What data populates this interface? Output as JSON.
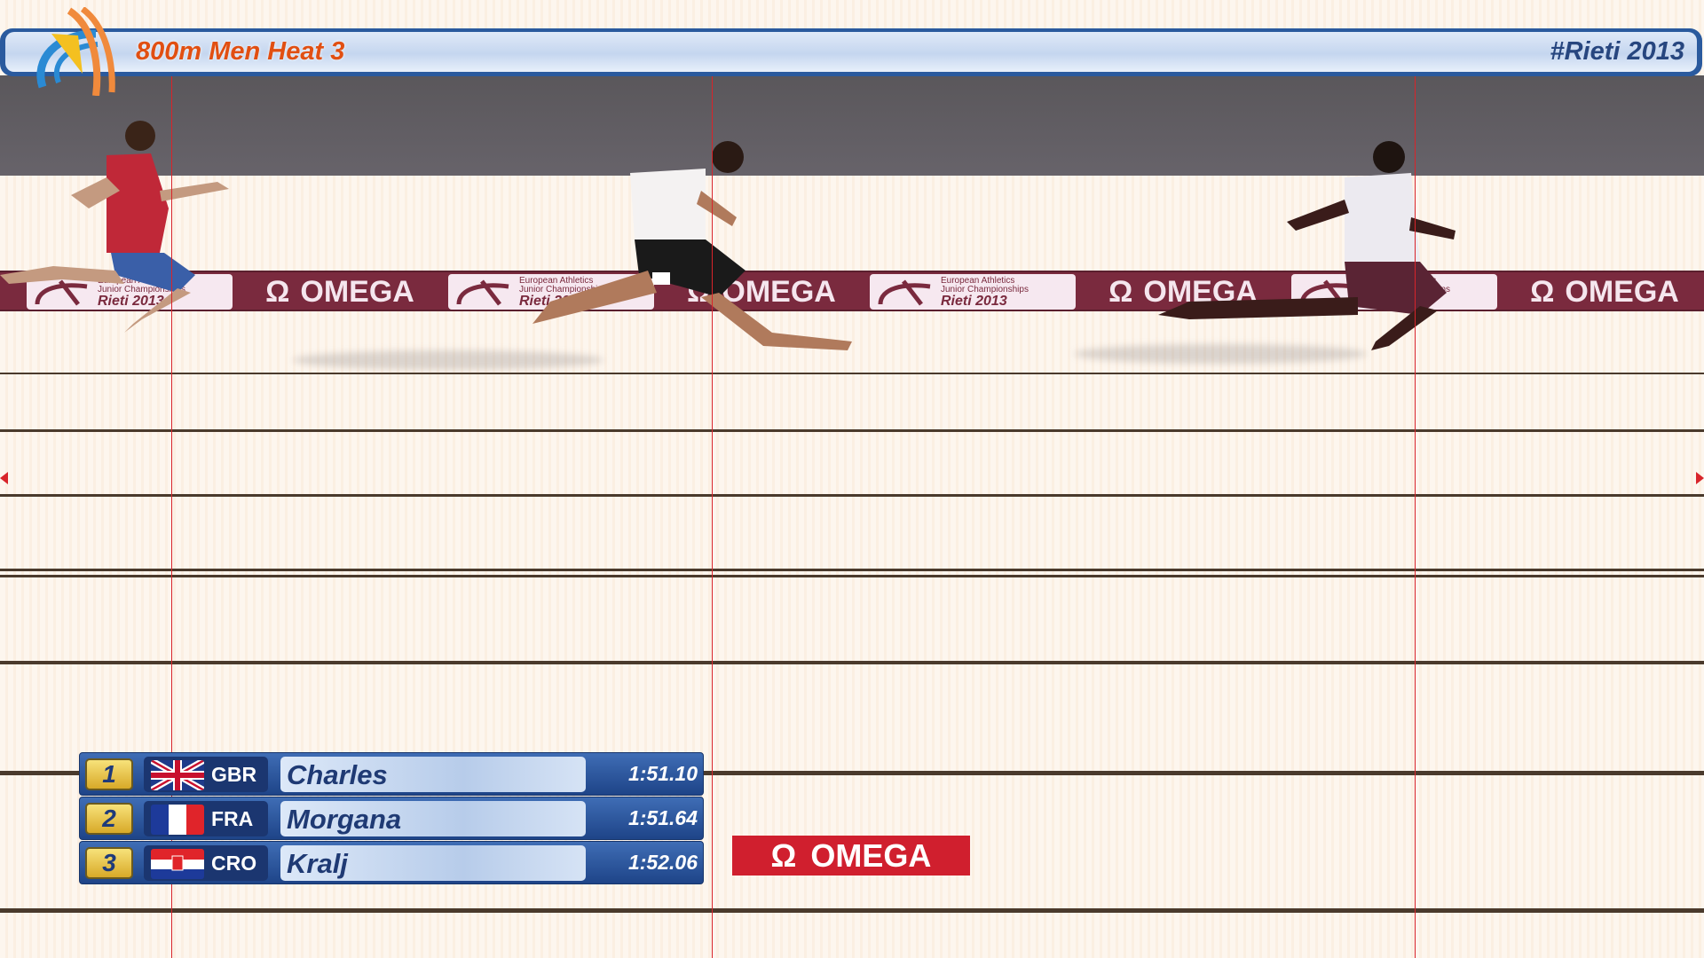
{
  "header": {
    "title": "800m Men Heat 3",
    "hashtag": "#Rieti 2013"
  },
  "board": {
    "championship_line1": "European Athletics",
    "championship_line2": "Junior Championships",
    "championship_line3": "Rieti 2013",
    "sponsor": "OMEGA",
    "omega_symbol": "Ω"
  },
  "results": [
    {
      "rank": "1",
      "country": "GBR",
      "flag": "gbr-flag-icon",
      "name": "Charles",
      "time": "1:51.10"
    },
    {
      "rank": "2",
      "country": "FRA",
      "flag": "fra-flag-icon",
      "name": "Morgana",
      "time": "1:51.64"
    },
    {
      "rank": "3",
      "country": "CRO",
      "flag": "cro-flag-icon",
      "name": "Kralj",
      "time": "1:52.06"
    }
  ],
  "sponsor_logo": {
    "symbol": "Ω",
    "text": "OMEGA"
  },
  "colors": {
    "title": "#e14f12",
    "header_bar": "#2a5a9e",
    "finish_line": "#d8242a",
    "omega_red": "#d01f2e",
    "rank_badge": "#f0cc50"
  }
}
